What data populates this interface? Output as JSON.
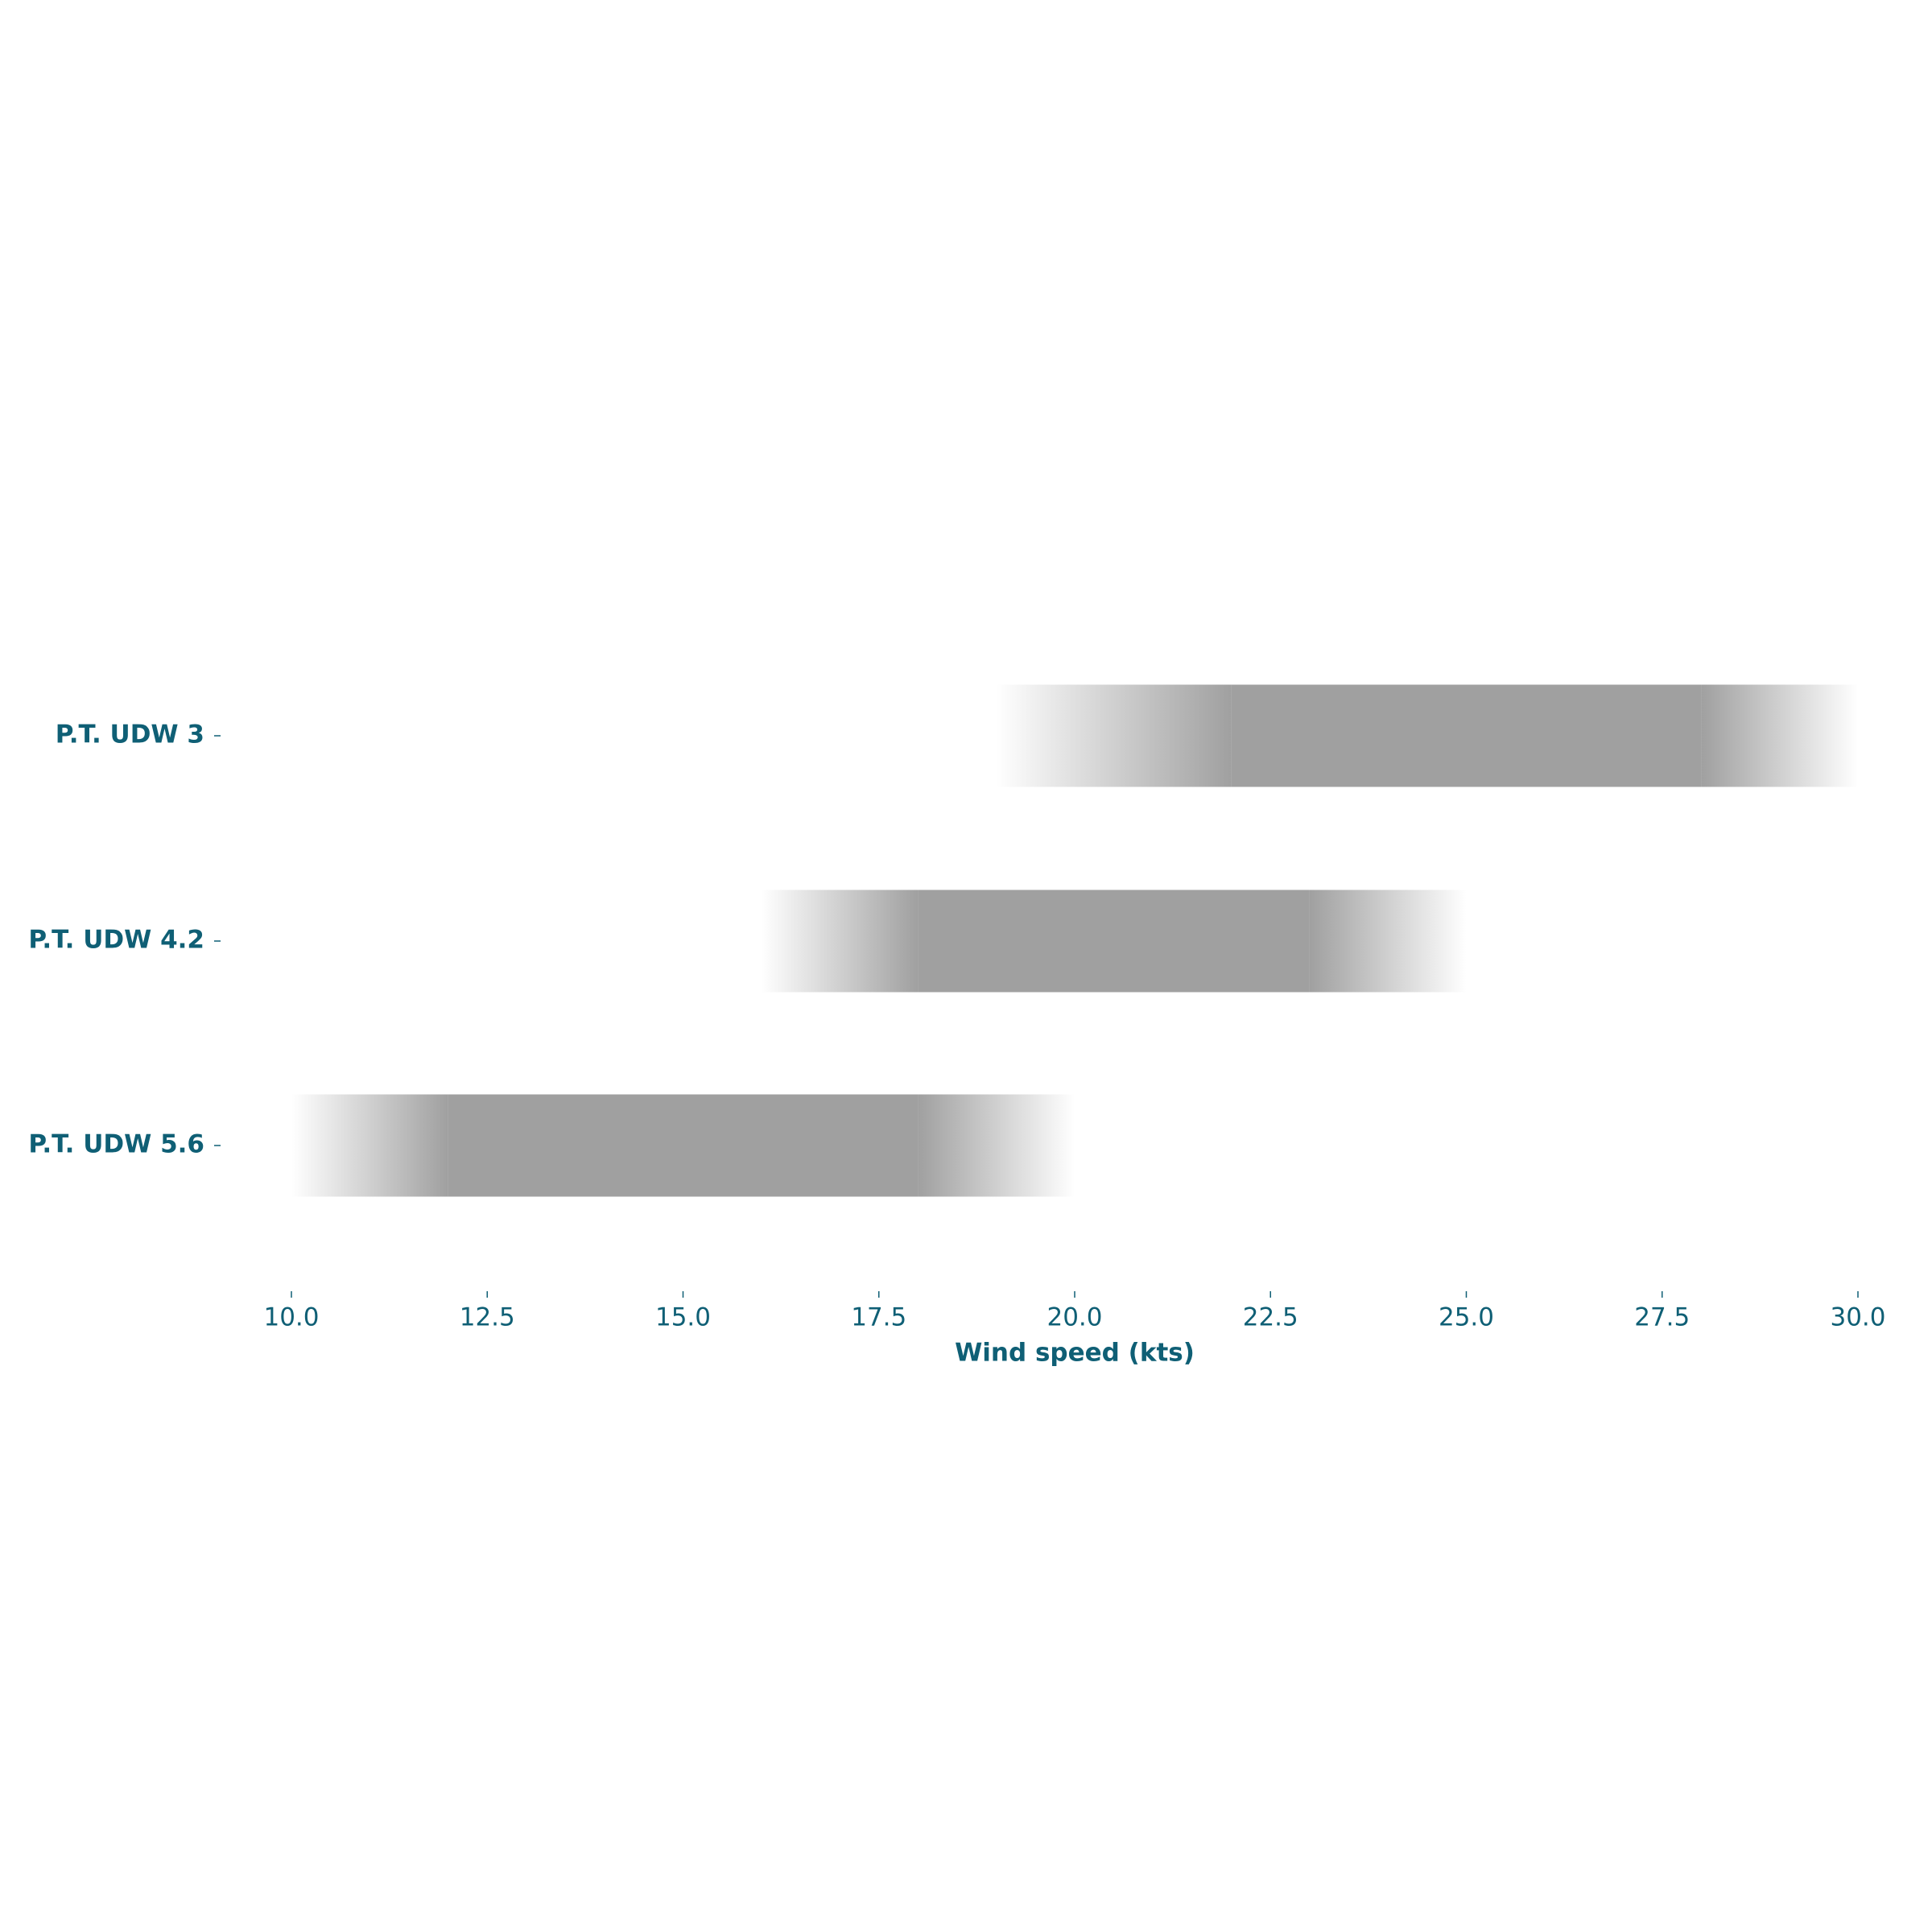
{
  "chart_data": {
    "type": "range-bar",
    "xlabel": "Wind speed (kts)",
    "color": "#a0a0a0",
    "categories": [
      "P.T. UDW 3",
      "P.T. UDW 4.2",
      "P.T. UDW 5.6"
    ],
    "values": [
      [
        19,
        22,
        28,
        30
      ],
      [
        16,
        18,
        23,
        25
      ],
      [
        10,
        12,
        18,
        20
      ]
    ],
    "xlim": [
      10,
      30
    ],
    "xticks": [
      {
        "value": 10,
        "label": "10.0"
      },
      {
        "value": 12.5,
        "label": "12.5"
      },
      {
        "value": 15,
        "label": "15.0"
      },
      {
        "value": 17.5,
        "label": "17.5"
      },
      {
        "value": 20,
        "label": "20.0"
      },
      {
        "value": 22.5,
        "label": "22.5"
      },
      {
        "value": 25,
        "label": "25.0"
      },
      {
        "value": 27.5,
        "label": "27.5"
      },
      {
        "value": 30,
        "label": "30.0"
      }
    ]
  }
}
